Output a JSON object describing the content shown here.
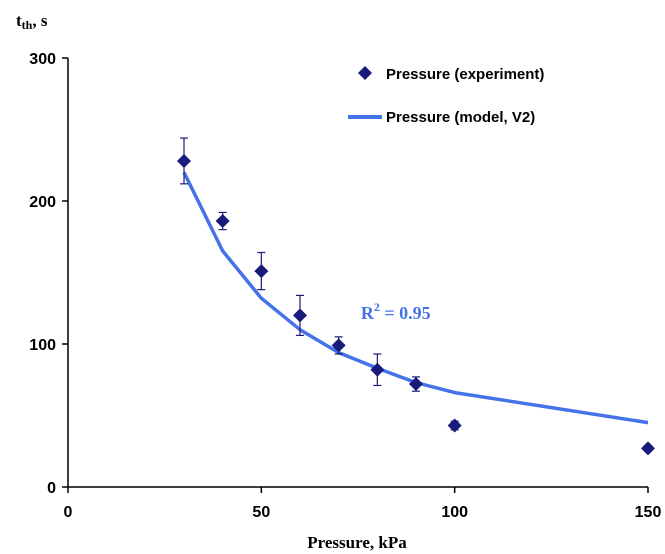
{
  "chart_data": {
    "type": "scatter",
    "xlabel": "Pressure, kPa",
    "ylabel_main": "t",
    "ylabel_sub": "th",
    "ylabel_suffix": ", s",
    "xlim": [
      0,
      150
    ],
    "ylim": [
      0,
      300
    ],
    "xticks": [
      0,
      50,
      100,
      150
    ],
    "yticks": [
      0,
      100,
      200,
      300
    ],
    "grid": false,
    "legend_position": "top-right",
    "series": [
      {
        "name": "Pressure (experiment)",
        "kind": "scatter",
        "marker": "diamond",
        "color": "#1a1a7a",
        "x": [
          30,
          40,
          50,
          60,
          70,
          80,
          90,
          100,
          150
        ],
        "y": [
          228,
          186,
          151,
          120,
          99,
          82,
          72,
          43,
          27
        ],
        "yerr": [
          16,
          6,
          13,
          14,
          6,
          11,
          5,
          3,
          0
        ]
      },
      {
        "name": "Pressure (model, V2)",
        "kind": "line",
        "color": "#4472e8",
        "x": [
          30,
          40,
          50,
          60,
          70,
          80,
          90,
          100,
          150
        ],
        "y": [
          220,
          165,
          132,
          110,
          94,
          83,
          73,
          66,
          45
        ]
      }
    ],
    "annotation": {
      "text_main": "R",
      "text_sup": "2",
      "text_rest": " = 0.95",
      "x": 68,
      "y": 112,
      "color": "#4472e8"
    }
  }
}
